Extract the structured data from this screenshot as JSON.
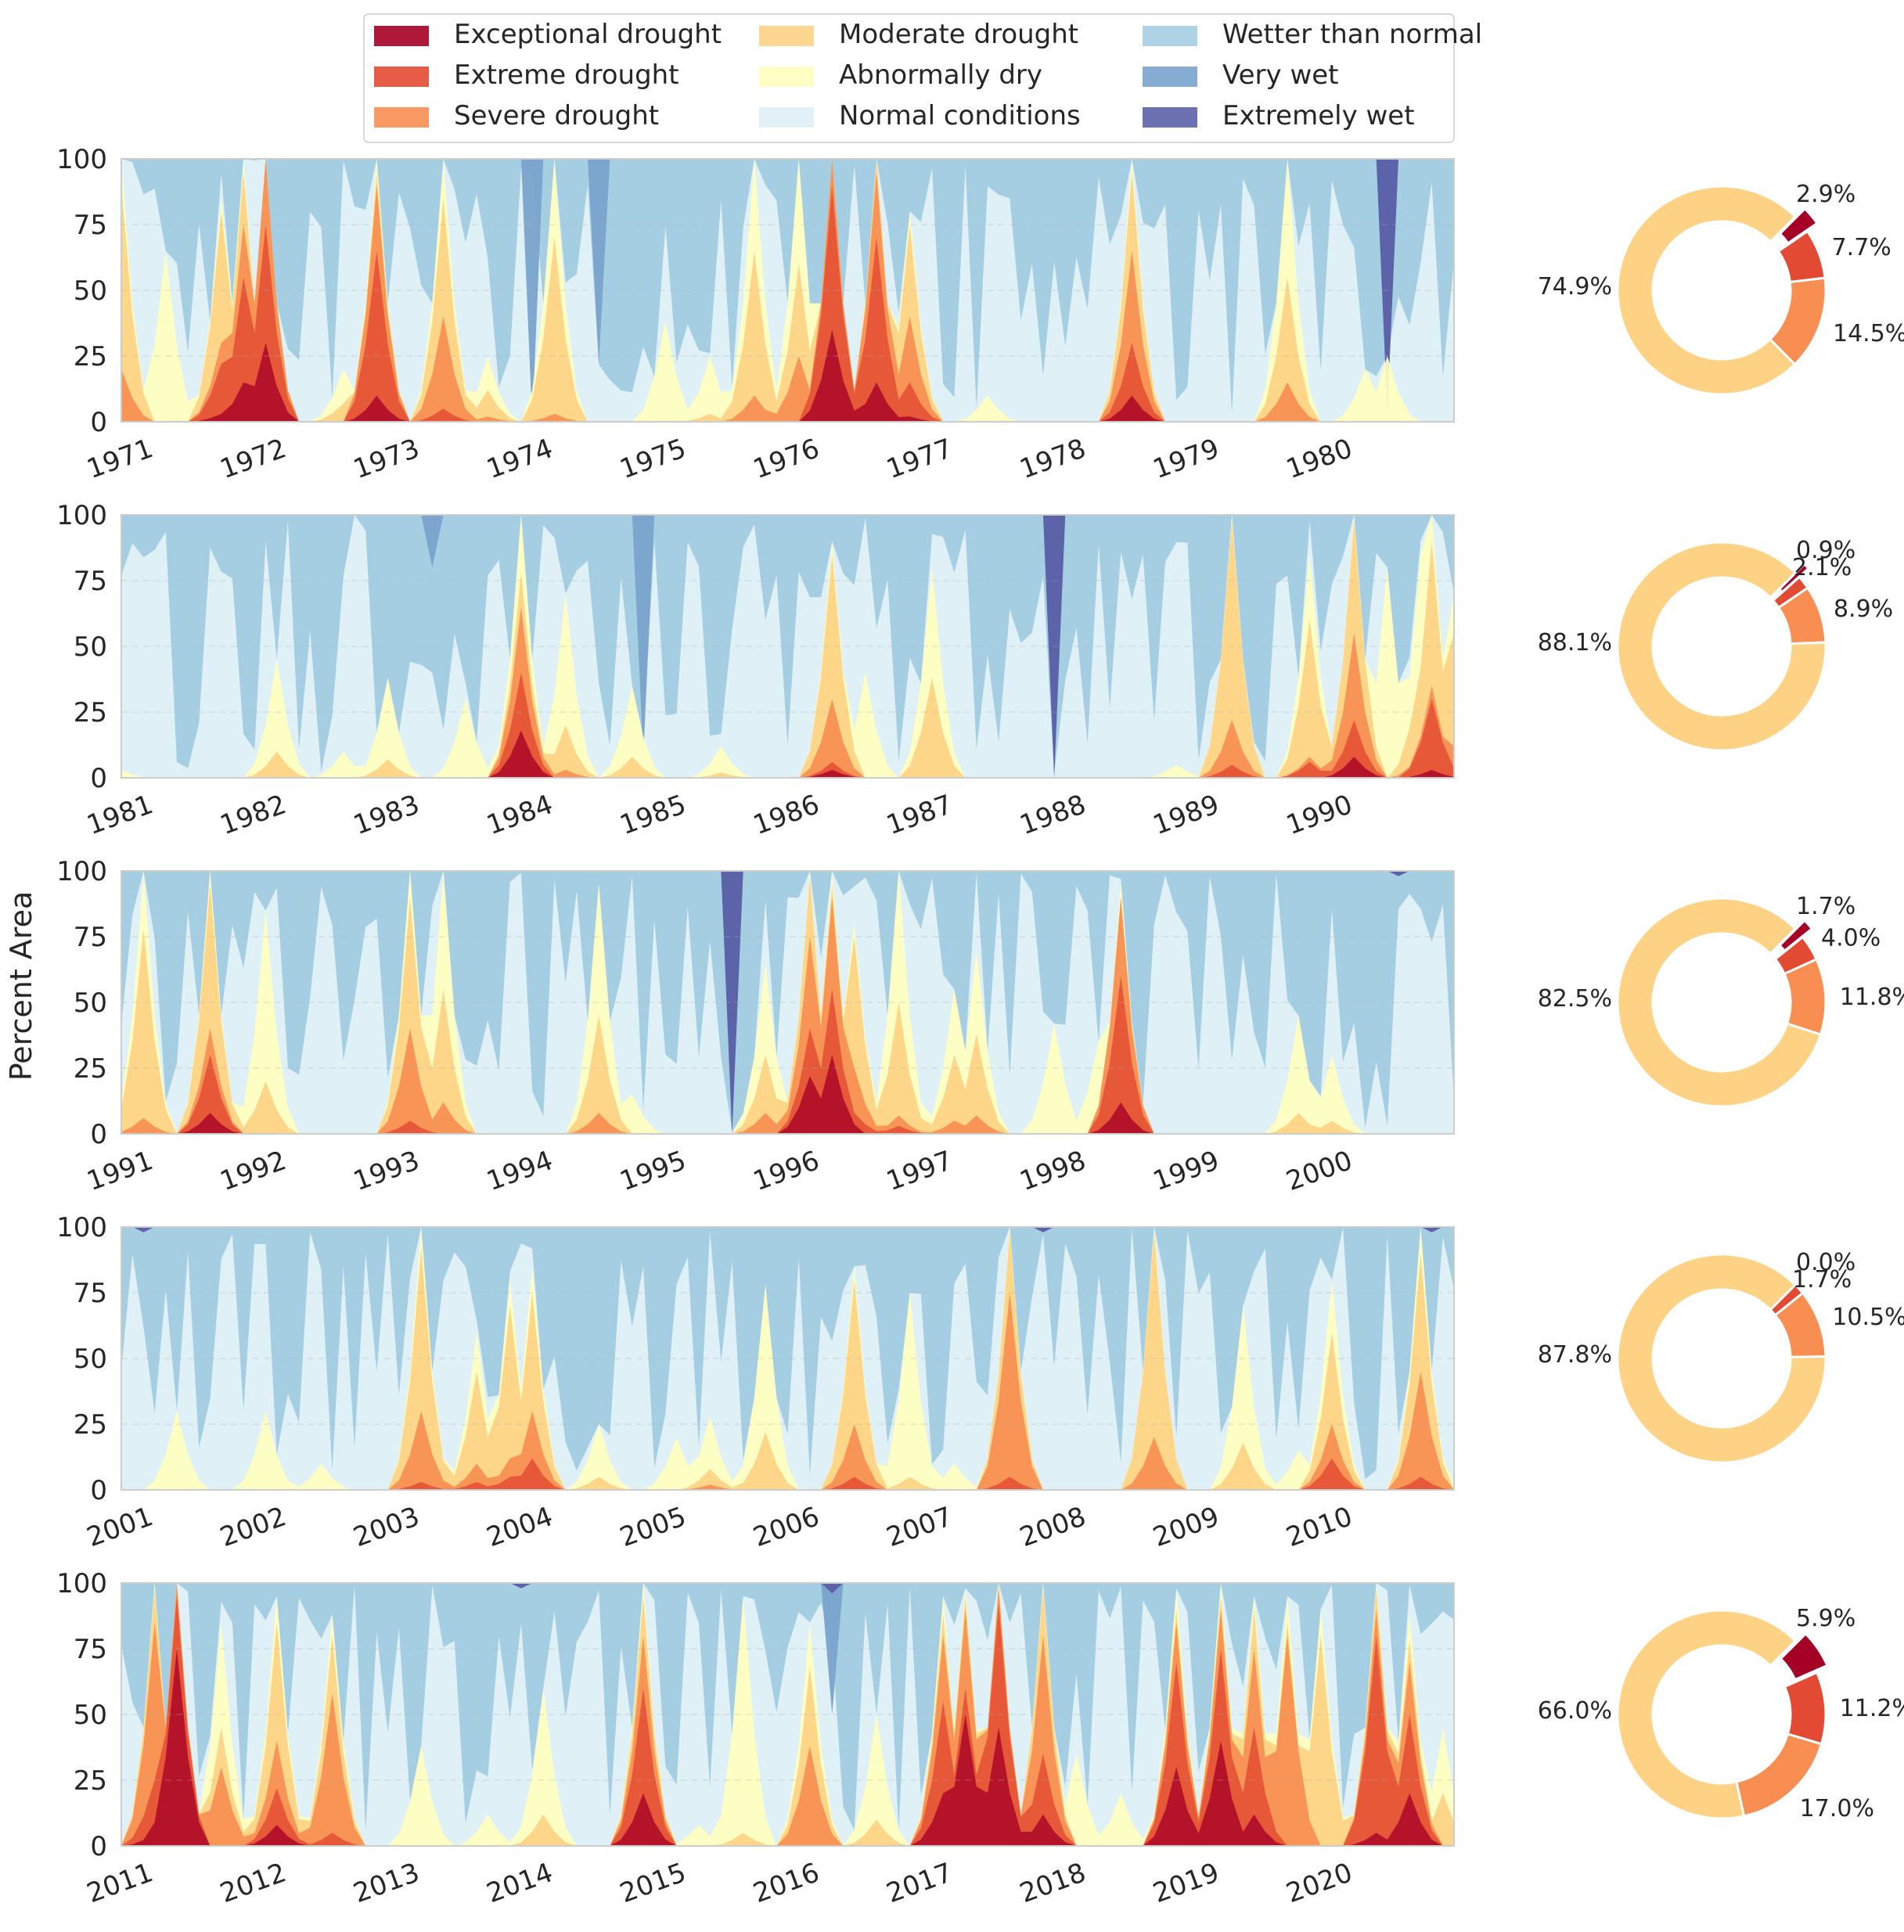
{
  "chart_data": {
    "type": "area",
    "title": "",
    "ylabel": "Percent Area",
    "ylim": [
      0,
      100
    ],
    "yticks": [
      0,
      25,
      50,
      75,
      100
    ],
    "grid": true,
    "legend_position": "top-center",
    "categories": [
      {
        "key": "D4",
        "label": "Exceptional drought",
        "color": "#a50026"
      },
      {
        "key": "D3",
        "label": "Extreme drought",
        "color": "#e34a33"
      },
      {
        "key": "D2",
        "label": "Severe drought",
        "color": "#f98e52"
      },
      {
        "key": "D1",
        "label": "Moderate drought",
        "color": "#fdd284"
      },
      {
        "key": "D0",
        "label": "Abnormally dry",
        "color": "#ffffbf"
      },
      {
        "key": "N",
        "label": "Normal conditions",
        "color": "#dff0f6"
      },
      {
        "key": "W1",
        "label": "Wetter than normal",
        "color": "#a6cee3"
      },
      {
        "key": "W2",
        "label": "Very wet",
        "color": "#7aa3cc"
      },
      {
        "key": "W3",
        "label": "Extremely wet",
        "color": "#5c63a8"
      }
    ],
    "panels": [
      {
        "decade": "1971-1980",
        "year_ticks": [
          "1971",
          "1972",
          "1973",
          "1974",
          "1975",
          "1976",
          "1977",
          "1978",
          "1979",
          "1980"
        ],
        "events": [
          {
            "month": 0,
            "D0": 100,
            "D1": 90,
            "D2": 20,
            "D3": 0,
            "D4": 0
          },
          {
            "month": 2,
            "D0": 10
          },
          {
            "month": 4,
            "D0": 65
          },
          {
            "month": 7,
            "D0": 8
          },
          {
            "month": 9,
            "D0": 85,
            "D1": 80,
            "D2": 30,
            "D3": 22,
            "D4": 3
          },
          {
            "month": 11,
            "D0": 100,
            "D1": 95,
            "D2": 75,
            "D3": 55,
            "D4": 15
          },
          {
            "month": 13,
            "D0": 100,
            "D1": 100,
            "D2": 100,
            "D3": 75,
            "D4": 30
          },
          {
            "month": 20,
            "D0": 20,
            "D1": 7
          },
          {
            "month": 23,
            "D0": 100,
            "D1": 95,
            "D2": 90,
            "D3": 65,
            "D4": 10
          },
          {
            "month": 29,
            "D0": 100,
            "D1": 85,
            "D2": 40,
            "D3": 5
          },
          {
            "month": 33,
            "D0": 25,
            "D1": 12,
            "D2": 2
          },
          {
            "month": 39,
            "D0": 100,
            "D1": 70,
            "D2": 3
          },
          {
            "month": 49,
            "D0": 38
          },
          {
            "month": 53,
            "D0": 25,
            "D1": 3
          },
          {
            "month": 57,
            "D0": 100,
            "D1": 65,
            "D2": 10
          },
          {
            "month": 61,
            "D0": 100,
            "D1": 60,
            "D2": 25
          },
          {
            "month": 64,
            "D0": 100,
            "D1": 100,
            "D2": 100,
            "D3": 90,
            "D4": 35
          },
          {
            "month": 68,
            "D0": 100,
            "D1": 100,
            "D2": 95,
            "D3": 70,
            "D4": 15
          },
          {
            "month": 71,
            "D0": 80,
            "D1": 75,
            "D2": 40,
            "D3": 15,
            "D4": 2
          },
          {
            "month": 78,
            "D0": 10
          },
          {
            "month": 91,
            "D0": 100,
            "D1": 95,
            "D2": 65,
            "D3": 30,
            "D4": 10
          },
          {
            "month": 105,
            "D0": 100,
            "D1": 55,
            "D2": 15
          },
          {
            "month": 112,
            "D0": 20
          },
          {
            "month": 114,
            "D0": 25
          }
        ],
        "wet": [
          {
            "month": 37,
            "W2": 0
          },
          {
            "month": 43,
            "W2": 22
          },
          {
            "month": 62,
            "W1": 0
          },
          {
            "month": 114,
            "W2": 60,
            "W3": 3
          }
        ],
        "donut": [
          {
            "label": "2.9%",
            "value": 2.9
          },
          {
            "label": "7.7%",
            "value": 7.7
          },
          {
            "label": "14.5%",
            "value": 14.5
          },
          {
            "label": "74.9%",
            "value": 74.9
          }
        ]
      },
      {
        "decade": "1981-1990",
        "year_ticks": [
          "1981",
          "1982",
          "1983",
          "1984",
          "1985",
          "1986",
          "1987",
          "1988",
          "1989",
          "1990"
        ],
        "events": [
          {
            "month": 0,
            "D0": 3
          },
          {
            "month": 14,
            "D0": 45,
            "D1": 10
          },
          {
            "month": 20,
            "D0": 10
          },
          {
            "month": 24,
            "D0": 38,
            "D1": 7
          },
          {
            "month": 31,
            "D0": 30
          },
          {
            "month": 36,
            "D0": 100,
            "D1": 78,
            "D2": 65,
            "D3": 40,
            "D4": 18
          },
          {
            "month": 40,
            "D0": 70,
            "D1": 20,
            "D2": 3
          },
          {
            "month": 46,
            "D0": 35,
            "D1": 8
          },
          {
            "month": 54,
            "D0": 12,
            "D1": 2
          },
          {
            "month": 64,
            "D0": 90,
            "D1": 85,
            "D2": 30,
            "D3": 6,
            "D4": 3
          },
          {
            "month": 67,
            "D0": 40
          },
          {
            "month": 73,
            "D0": 80,
            "D1": 38
          },
          {
            "month": 95,
            "D0": 5
          },
          {
            "month": 100,
            "D0": 100,
            "D1": 98,
            "D2": 22,
            "D3": 5
          },
          {
            "month": 107,
            "D0": 85,
            "D1": 60,
            "D2": 8,
            "D3": 6
          },
          {
            "month": 111,
            "D0": 100,
            "D1": 98,
            "D2": 55,
            "D3": 22,
            "D4": 8
          },
          {
            "month": 114,
            "D0": 80
          },
          {
            "month": 117,
            "D0": 85,
            "D1": 42,
            "D2": 8
          },
          {
            "month": 118,
            "D0": 100,
            "D1": 90,
            "D2": 35,
            "D3": 30,
            "D4": 3
          },
          {
            "month": 120,
            "D0": 70,
            "D1": 55,
            "D2": 12
          }
        ],
        "wet": [
          {
            "month": 28,
            "W2": 80,
            "W3": 100
          },
          {
            "month": 47,
            "W2": 8
          },
          {
            "month": 84,
            "W2": 100,
            "W3": 0
          }
        ],
        "donut": [
          {
            "label": "0.9%",
            "value": 0.9
          },
          {
            "label": "2.1%",
            "value": 2.1
          },
          {
            "label": "8.9%",
            "value": 8.9
          },
          {
            "label": "88.1%",
            "value": 88.1
          }
        ]
      },
      {
        "decade": "1991-2000",
        "year_ticks": [
          "1991",
          "1992",
          "1993",
          "1994",
          "1995",
          "1996",
          "1997",
          "1998",
          "1999",
          "2000"
        ],
        "events": [
          {
            "month": 2,
            "D0": 100,
            "D1": 78,
            "D2": 6
          },
          {
            "month": 8,
            "D0": 100,
            "D1": 95,
            "D2": 40,
            "D3": 30,
            "D4": 8
          },
          {
            "month": 13,
            "D0": 85,
            "D1": 20
          },
          {
            "month": 26,
            "D0": 100,
            "D1": 90,
            "D2": 40,
            "D3": 5
          },
          {
            "month": 29,
            "D0": 100,
            "D1": 55,
            "D2": 12
          },
          {
            "month": 43,
            "D0": 95,
            "D1": 45,
            "D2": 8
          },
          {
            "month": 46,
            "D0": 15
          },
          {
            "month": 58,
            "D0": 65,
            "D1": 30,
            "D2": 8
          },
          {
            "month": 62,
            "D0": 100,
            "D1": 98,
            "D2": 75,
            "D3": 40,
            "D4": 22
          },
          {
            "month": 64,
            "D0": 100,
            "D1": 95,
            "D2": 90,
            "D3": 55,
            "D4": 30
          },
          {
            "month": 66,
            "D0": 80,
            "D1": 75,
            "D2": 25,
            "D3": 8
          },
          {
            "month": 70,
            "D0": 100,
            "D1": 50,
            "D2": 7,
            "D3": 3
          },
          {
            "month": 75,
            "D0": 55,
            "D1": 30,
            "D2": 5
          },
          {
            "month": 77,
            "D0": 70,
            "D1": 38,
            "D2": 7
          },
          {
            "month": 84,
            "D0": 42
          },
          {
            "month": 88,
            "D0": 35
          },
          {
            "month": 90,
            "D0": 95,
            "D1": 90,
            "D2": 90,
            "D3": 60,
            "D4": 12
          },
          {
            "month": 106,
            "D0": 45,
            "D1": 8
          },
          {
            "month": 109,
            "D0": 30,
            "D1": 5
          }
        ],
        "wet": [
          {
            "month": 55,
            "W2": 65,
            "W3": 0
          },
          {
            "month": 115,
            "W3": 98
          }
        ],
        "donut": [
          {
            "label": "1.7%",
            "value": 1.7
          },
          {
            "label": "4.0%",
            "value": 4.0
          },
          {
            "label": "11.8%",
            "value": 11.8
          },
          {
            "label": "82.5%",
            "value": 82.5
          }
        ]
      },
      {
        "decade": "2001-2010",
        "year_ticks": [
          "2001",
          "2002",
          "2003",
          "2004",
          "2005",
          "2006",
          "2007",
          "2008",
          "2009",
          "2010"
        ],
        "events": [
          {
            "month": 5,
            "D0": 30
          },
          {
            "month": 13,
            "D0": 30
          },
          {
            "month": 18,
            "D0": 10
          },
          {
            "month": 27,
            "D0": 100,
            "D1": 92,
            "D2": 30,
            "D3": 3
          },
          {
            "month": 32,
            "D0": 60,
            "D1": 45,
            "D2": 10,
            "D3": 3
          },
          {
            "month": 35,
            "D0": 80,
            "D1": 70,
            "D2": 12,
            "D3": 5
          },
          {
            "month": 37,
            "D0": 85,
            "D1": 75,
            "D2": 30,
            "D3": 12
          },
          {
            "month": 43,
            "D0": 25,
            "D1": 5
          },
          {
            "month": 50,
            "D0": 20
          },
          {
            "month": 53,
            "D0": 28,
            "D1": 8,
            "D2": 2
          },
          {
            "month": 58,
            "D0": 78,
            "D1": 22
          },
          {
            "month": 66,
            "D0": 85,
            "D1": 80,
            "D2": 25,
            "D3": 5
          },
          {
            "month": 71,
            "D0": 75,
            "D1": 5
          },
          {
            "month": 75,
            "D0": 10
          },
          {
            "month": 80,
            "D0": 100,
            "D1": 98,
            "D2": 75,
            "D3": 5
          },
          {
            "month": 93,
            "D0": 100,
            "D1": 98,
            "D2": 20
          },
          {
            "month": 101,
            "D0": 70,
            "D1": 18
          },
          {
            "month": 106,
            "D0": 15
          },
          {
            "month": 109,
            "D0": 80,
            "D1": 60,
            "D2": 25,
            "D3": 12
          },
          {
            "month": 117,
            "D0": 100,
            "D1": 90,
            "D2": 45,
            "D3": 5
          },
          {
            "month": 119,
            "D0": 5
          }
        ],
        "wet": [
          {
            "month": 2,
            "W3": 98
          },
          {
            "month": 83,
            "W3": 98
          },
          {
            "month": 118,
            "W3": 98
          }
        ],
        "donut": [
          {
            "label": "0.0%",
            "value": 0.0
          },
          {
            "label": "1.7%",
            "value": 1.7
          },
          {
            "label": "10.5%",
            "value": 10.5
          },
          {
            "label": "87.8%",
            "value": 87.8
          }
        ]
      },
      {
        "decade": "2011-2020",
        "year_ticks": [
          "2011",
          "2012",
          "2013",
          "2014",
          "2015",
          "2016",
          "2017",
          "2018",
          "2019",
          "2020"
        ],
        "events": [
          {
            "month": 3,
            "D0": 100,
            "D1": 98,
            "D2": 85,
            "D3": 25,
            "D4": 5
          },
          {
            "month": 5,
            "D0": 100,
            "D1": 100,
            "D2": 100,
            "D3": 95,
            "D4": 75
          },
          {
            "month": 9,
            "D0": 85,
            "D1": 45,
            "D2": 30
          },
          {
            "month": 14,
            "D0": 95,
            "D1": 85,
            "D2": 40,
            "D3": 22,
            "D4": 8
          },
          {
            "month": 19,
            "D0": 88,
            "D1": 80,
            "D2": 58,
            "D3": 5
          },
          {
            "month": 27,
            "D0": 38
          },
          {
            "month": 33,
            "D0": 12
          },
          {
            "month": 38,
            "D0": 60,
            "D1": 12
          },
          {
            "month": 47,
            "D0": 100,
            "D1": 95,
            "D2": 80,
            "D3": 60,
            "D4": 20
          },
          {
            "month": 52,
            "D0": 8
          },
          {
            "month": 56,
            "D0": 95,
            "D1": 5
          },
          {
            "month": 62,
            "D0": 85,
            "D1": 68,
            "D2": 38
          },
          {
            "month": 68,
            "D0": 50,
            "D1": 10
          },
          {
            "month": 74,
            "D0": 95,
            "D1": 88,
            "D2": 80,
            "D3": 55,
            "D4": 20
          },
          {
            "month": 76,
            "D0": 98,
            "D1": 95,
            "D2": 90,
            "D3": 60,
            "D4": 50
          },
          {
            "month": 79,
            "D0": 100,
            "D1": 100,
            "D2": 98,
            "D3": 92,
            "D4": 45
          },
          {
            "month": 83,
            "D0": 100,
            "D1": 98,
            "D2": 80,
            "D3": 35,
            "D4": 12
          },
          {
            "month": 86,
            "D0": 35
          },
          {
            "month": 90,
            "D0": 20
          },
          {
            "month": 95,
            "D0": 98,
            "D1": 90,
            "D2": 85,
            "D3": 70,
            "D4": 30
          },
          {
            "month": 99,
            "D0": 100,
            "D1": 95,
            "D2": 90,
            "D3": 75,
            "D4": 40
          },
          {
            "month": 102,
            "D0": 95,
            "D1": 90,
            "D2": 75,
            "D3": 45,
            "D4": 12
          },
          {
            "month": 105,
            "D0": 95,
            "D1": 85,
            "D2": 80
          },
          {
            "month": 108,
            "D0": 90,
            "D1": 80
          },
          {
            "month": 110,
            "D0": 10
          },
          {
            "month": 113,
            "D0": 100,
            "D1": 98,
            "D2": 90,
            "D3": 80,
            "D4": 5
          },
          {
            "month": 116,
            "D0": 88,
            "D1": 78,
            "D2": 70,
            "D3": 50,
            "D4": 20
          },
          {
            "month": 119,
            "D0": 45,
            "D1": 20
          }
        ],
        "wet": [
          {
            "month": 36,
            "W3": 98
          },
          {
            "month": 64,
            "W2": 50,
            "W3": 96
          }
        ],
        "donut": [
          {
            "label": "5.9%",
            "value": 5.9
          },
          {
            "label": "11.2%",
            "value": 11.2
          },
          {
            "label": "17.0%",
            "value": 17.0
          },
          {
            "label": "66.0%",
            "value": 66.0
          }
        ]
      }
    ]
  }
}
